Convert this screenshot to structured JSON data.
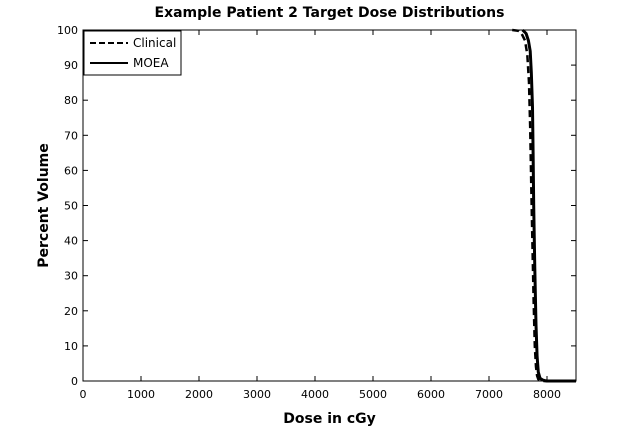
{
  "chart_data": {
    "type": "line",
    "title": "Example Patient 2 Target Dose Distributions",
    "xlabel": "Dose in cGy",
    "ylabel": "Percent Volume",
    "xlim": [
      0,
      8500
    ],
    "ylim": [
      0,
      100
    ],
    "xticks": [
      0,
      1000,
      2000,
      3000,
      4000,
      5000,
      6000,
      7000,
      8000
    ],
    "yticks": [
      0,
      10,
      20,
      30,
      40,
      50,
      60,
      70,
      80,
      90,
      100
    ],
    "grid": false,
    "legend_position": "top-left",
    "series": [
      {
        "name": "Clinical",
        "style": "dashed",
        "color": "#000000",
        "x": [
          7400,
          7500,
          7560,
          7620,
          7660,
          7690,
          7710,
          7730,
          7750,
          7770,
          7790,
          7810,
          7830,
          7850,
          7870,
          7900,
          7950,
          8000
        ],
        "y": [
          100,
          99.8,
          99,
          97,
          93,
          85,
          72,
          55,
          38,
          22,
          10,
          4,
          1.5,
          0.5,
          0.2,
          0,
          0,
          0
        ]
      },
      {
        "name": "MOEA",
        "style": "solid",
        "color": "#000000",
        "x": [
          7580,
          7640,
          7680,
          7710,
          7730,
          7750,
          7760,
          7770,
          7790,
          7810,
          7830,
          7850,
          7880,
          7920,
          7960,
          8000,
          8200,
          8500
        ],
        "y": [
          100,
          99,
          97,
          94,
          88,
          78,
          65,
          50,
          32,
          16,
          7,
          2.5,
          0.8,
          0.3,
          0.1,
          0,
          0,
          0
        ]
      }
    ]
  }
}
